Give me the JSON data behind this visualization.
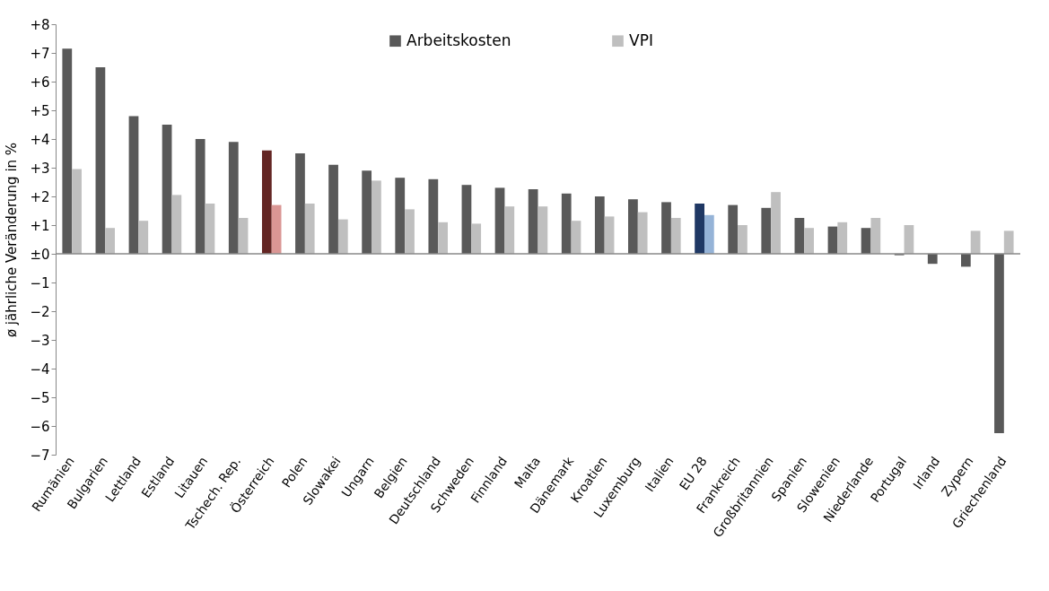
{
  "chart_data": {
    "type": "bar",
    "ylabel": "ø jährliche Veränderung in %",
    "categories": [
      "Rumänien",
      "Bulgarien",
      "Lettland",
      "Estland",
      "Litauen",
      "Tschech. Rep.",
      "Österreich",
      "Polen",
      "Slowakei",
      "Ungarn",
      "Belgien",
      "Deutschland",
      "Schweden",
      "Finnland",
      "Malta",
      "Dänemark",
      "Kroatien",
      "Luxemburg",
      "Italien",
      "EU 28",
      "Frankreich",
      "Großbritannien",
      "Spanien",
      "Slowenien",
      "Niederlande",
      "Portugal",
      "Irland",
      "Zypern",
      "Griechenland"
    ],
    "series": [
      {
        "name": "Arbeitskosten",
        "color": "#595959",
        "colors": [
          "#595959",
          "#595959",
          "#595959",
          "#595959",
          "#595959",
          "#595959",
          "#632523",
          "#595959",
          "#595959",
          "#595959",
          "#595959",
          "#595959",
          "#595959",
          "#595959",
          "#595959",
          "#595959",
          "#595959",
          "#595959",
          "#595959",
          "#1f3864",
          "#595959",
          "#595959",
          "#595959",
          "#595959",
          "#595959",
          "#595959",
          "#595959",
          "#595959",
          "#595959"
        ],
        "values": [
          7.15,
          6.5,
          4.8,
          4.5,
          4.0,
          3.9,
          3.6,
          3.5,
          3.1,
          2.9,
          2.65,
          2.6,
          2.4,
          2.3,
          2.25,
          2.1,
          2.0,
          1.9,
          1.8,
          1.75,
          1.7,
          1.6,
          1.25,
          0.95,
          0.9,
          -0.05,
          -0.35,
          -0.45,
          -6.25
        ]
      },
      {
        "name": "VPI",
        "color": "#bfbfbf",
        "colors": [
          "#bfbfbf",
          "#bfbfbf",
          "#bfbfbf",
          "#bfbfbf",
          "#bfbfbf",
          "#bfbfbf",
          "#da9694",
          "#bfbfbf",
          "#bfbfbf",
          "#bfbfbf",
          "#bfbfbf",
          "#bfbfbf",
          "#bfbfbf",
          "#bfbfbf",
          "#bfbfbf",
          "#bfbfbf",
          "#bfbfbf",
          "#bfbfbf",
          "#bfbfbf",
          "#95b3d7",
          "#bfbfbf",
          "#bfbfbf",
          "#bfbfbf",
          "#bfbfbf",
          "#bfbfbf",
          "#bfbfbf",
          "#bfbfbf",
          "#bfbfbf",
          "#bfbfbf"
        ],
        "values": [
          2.95,
          0.9,
          1.15,
          2.05,
          1.75,
          1.25,
          1.7,
          1.75,
          1.2,
          2.55,
          1.55,
          1.1,
          1.05,
          1.65,
          1.65,
          1.15,
          1.3,
          1.45,
          1.25,
          1.35,
          1.0,
          2.15,
          0.9,
          1.1,
          1.25,
          1.0,
          0.0,
          0.8,
          0.8
        ]
      }
    ],
    "ylim": [
      -7,
      8
    ],
    "yticks": [
      {
        "value": 8,
        "label": "+8"
      },
      {
        "value": 7,
        "label": "+7"
      },
      {
        "value": 6,
        "label": "+6"
      },
      {
        "value": 5,
        "label": "+5"
      },
      {
        "value": 4,
        "label": "+4"
      },
      {
        "value": 3,
        "label": "+3"
      },
      {
        "value": 2,
        "label": "+2"
      },
      {
        "value": 1,
        "label": "+1"
      },
      {
        "value": 0,
        "label": "±0"
      },
      {
        "value": -1,
        "label": "−1"
      },
      {
        "value": -2,
        "label": "−2"
      },
      {
        "value": -3,
        "label": "−3"
      },
      {
        "value": -4,
        "label": "−4"
      },
      {
        "value": -5,
        "label": "−5"
      },
      {
        "value": -6,
        "label": "−6"
      },
      {
        "value": -7,
        "label": "−7"
      }
    ],
    "legend": "top"
  }
}
